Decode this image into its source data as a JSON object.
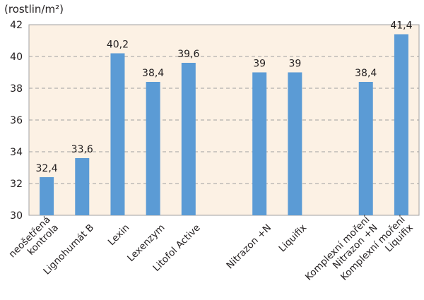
{
  "chart_data": {
    "type": "bar",
    "title": "",
    "ylabel": "(rostlin/m²)",
    "xlabel": "",
    "ylim": [
      30,
      42
    ],
    "yticks": [
      30,
      32,
      34,
      36,
      38,
      40,
      42
    ],
    "grid": true,
    "colors": {
      "bar": "#5b9bd5",
      "plot_bg": "#fcf1e4",
      "grid": "#a0a0a0"
    },
    "categories": [
      [
        "neošetřená",
        "kontrola"
      ],
      [
        "Lignohumát B"
      ],
      [
        "Lexin"
      ],
      [
        "Lexenzym"
      ],
      [
        "Litofol Active"
      ],
      null,
      [
        "Nitrazon +N"
      ],
      [
        "Liquifix"
      ],
      null,
      [
        "Komplexní moření",
        "Nitrazon +N"
      ],
      [
        "Komplexní moření",
        "Liquifix"
      ]
    ],
    "values": [
      32.4,
      33.6,
      40.2,
      38.4,
      39.6,
      null,
      39,
      39,
      null,
      38.4,
      41.4
    ],
    "data_labels": [
      "32,4",
      "33,6",
      "40,2",
      "38,4",
      "39,6",
      null,
      "39",
      "39",
      null,
      "38,4",
      "41,4"
    ]
  }
}
